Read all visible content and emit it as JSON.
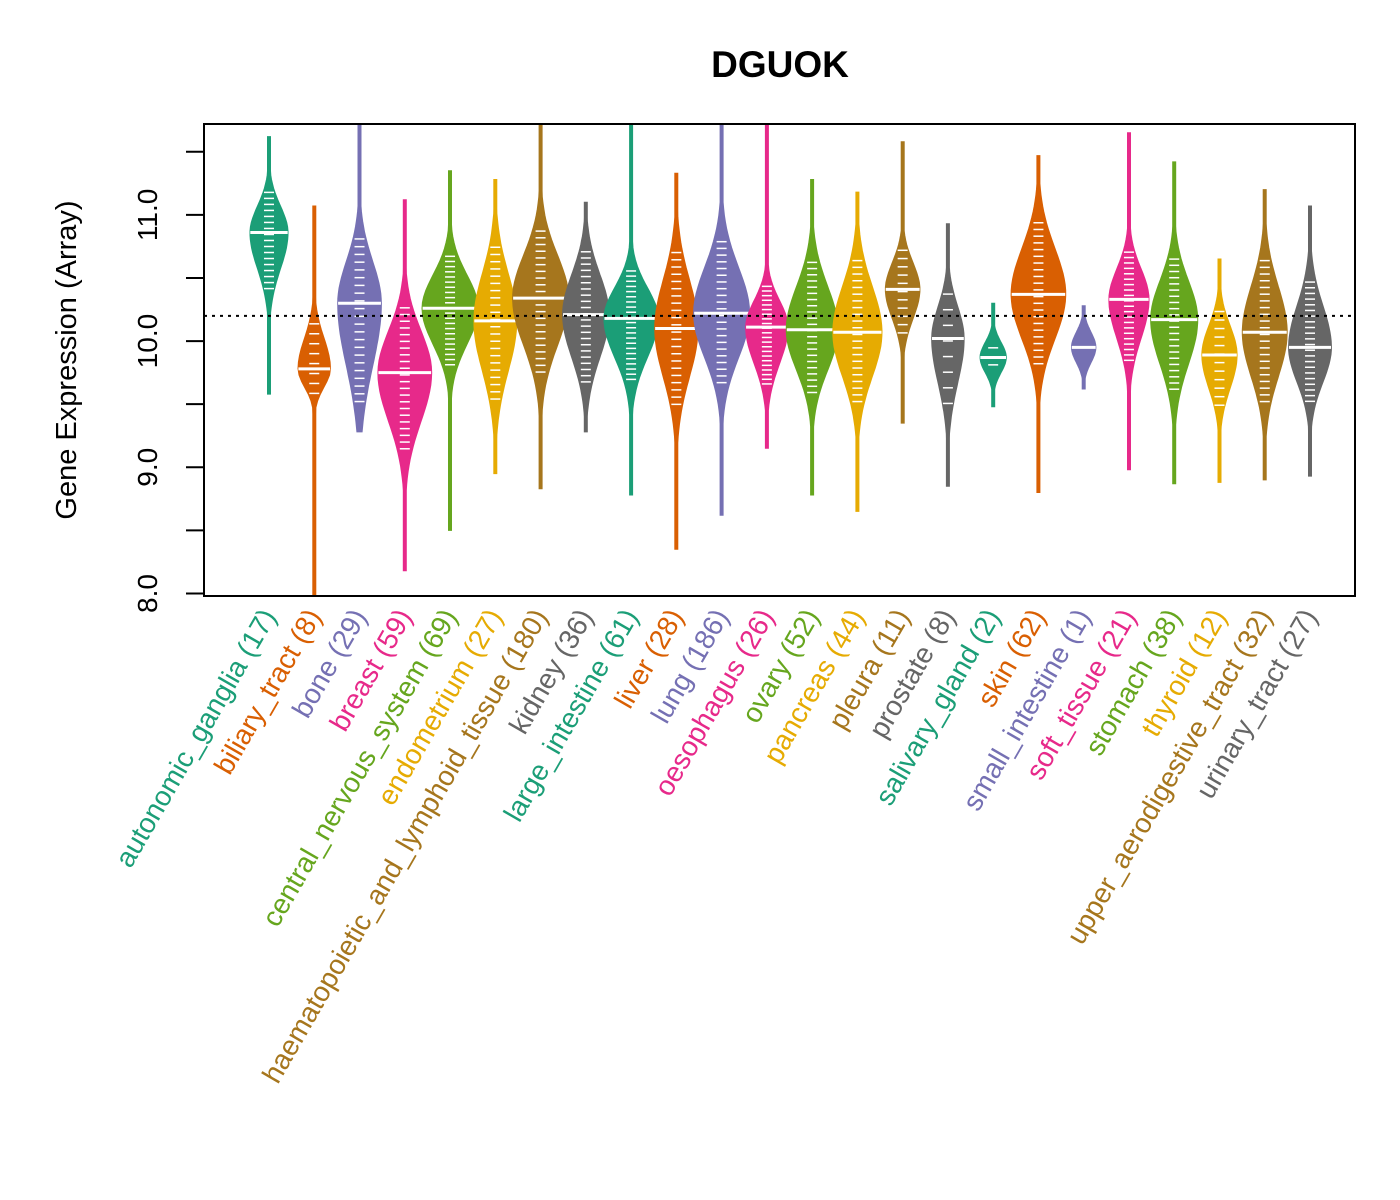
{
  "chart_data": {
    "type": "violin",
    "title": "DGUOK",
    "xlabel": "",
    "ylabel": "Gene Expression (Array)",
    "ylim": [
      7.98,
      11.72
    ],
    "yticks": [
      8.0,
      8.5,
      9.0,
      9.5,
      10.0,
      10.5,
      11.0,
      11.5
    ],
    "ytick_labels": [
      "8.0",
      "",
      "9.0",
      "",
      "10.0",
      "",
      "11.0",
      ""
    ],
    "reference_line": 10.2,
    "reference_line_style": "dotted",
    "grid": false,
    "categories": [
      {
        "name": "autonomic_ganglia",
        "n": 17,
        "color": "#1B9E77",
        "median": 10.86,
        "min": 9.58,
        "max": 11.62,
        "q1": 10.6,
        "q3": 11.05
      },
      {
        "name": "biliary_tract",
        "n": 8,
        "color": "#D95F02",
        "median": 9.78,
        "min": 7.98,
        "max": 11.07,
        "q1": 9.65,
        "q3": 10.0
      },
      {
        "name": "bone",
        "n": 29,
        "color": "#7570B3",
        "median": 10.3,
        "min": 9.28,
        "max": 11.72,
        "q1": 9.85,
        "q3": 10.6
      },
      {
        "name": "breast",
        "n": 59,
        "color": "#E7298A",
        "median": 9.75,
        "min": 8.18,
        "max": 11.12,
        "q1": 9.4,
        "q3": 10.05
      },
      {
        "name": "central_nervous_system",
        "n": 69,
        "color": "#66A61E",
        "median": 10.26,
        "min": 8.5,
        "max": 11.35,
        "q1": 10.0,
        "q3": 10.5
      },
      {
        "name": "endometrium",
        "n": 27,
        "color": "#E6AB02",
        "median": 10.16,
        "min": 8.95,
        "max": 11.28,
        "q1": 9.8,
        "q3": 10.5
      },
      {
        "name": "haematopoietic_and_lymphoid_tissue",
        "n": 180,
        "color": "#A6761D",
        "median": 10.34,
        "min": 8.83,
        "max": 11.72,
        "q1": 10.0,
        "q3": 10.65
      },
      {
        "name": "kidney",
        "n": 36,
        "color": "#666666",
        "median": 10.21,
        "min": 9.28,
        "max": 11.1,
        "q1": 9.9,
        "q3": 10.5
      },
      {
        "name": "large_intestine",
        "n": 61,
        "color": "#1B9E77",
        "median": 10.18,
        "min": 8.78,
        "max": 11.72,
        "q1": 9.9,
        "q3": 10.4
      },
      {
        "name": "liver",
        "n": 28,
        "color": "#D95F02",
        "median": 10.1,
        "min": 8.35,
        "max": 11.33,
        "q1": 9.75,
        "q3": 10.45
      },
      {
        "name": "lung",
        "n": 186,
        "color": "#7570B3",
        "median": 10.22,
        "min": 8.62,
        "max": 11.72,
        "q1": 9.9,
        "q3": 10.55
      },
      {
        "name": "oesophagus",
        "n": 26,
        "color": "#E7298A",
        "median": 10.11,
        "min": 9.15,
        "max": 11.72,
        "q1": 9.85,
        "q3": 10.3
      },
      {
        "name": "ovary",
        "n": 52,
        "color": "#66A61E",
        "median": 10.09,
        "min": 8.78,
        "max": 11.28,
        "q1": 9.8,
        "q3": 10.4
      },
      {
        "name": "pancreas",
        "n": 44,
        "color": "#E6AB02",
        "median": 10.07,
        "min": 8.65,
        "max": 11.18,
        "q1": 9.75,
        "q3": 10.4
      },
      {
        "name": "pleura",
        "n": 11,
        "color": "#A6761D",
        "median": 10.41,
        "min": 9.35,
        "max": 11.58,
        "q1": 10.2,
        "q3": 10.6
      },
      {
        "name": "prostate",
        "n": 8,
        "color": "#666666",
        "median": 10.02,
        "min": 8.85,
        "max": 10.93,
        "q1": 9.7,
        "q3": 10.25
      },
      {
        "name": "salivary_gland",
        "n": 2,
        "color": "#1B9E77",
        "median": 9.87,
        "min": 9.48,
        "max": 10.3,
        "q1": 9.8,
        "q3": 9.95
      },
      {
        "name": "skin",
        "n": 62,
        "color": "#D95F02",
        "median": 10.37,
        "min": 8.8,
        "max": 11.47,
        "q1": 10.05,
        "q3": 10.7
      },
      {
        "name": "small_intestine",
        "n": 1,
        "color": "#7570B3",
        "median": 9.95,
        "min": 9.62,
        "max": 10.28,
        "q1": 9.9,
        "q3": 10.0
      },
      {
        "name": "soft_tissue",
        "n": 21,
        "color": "#E7298A",
        "median": 10.33,
        "min": 8.98,
        "max": 11.65,
        "q1": 10.05,
        "q3": 10.55
      },
      {
        "name": "stomach",
        "n": 38,
        "color": "#66A61E",
        "median": 10.17,
        "min": 8.87,
        "max": 11.42,
        "q1": 9.85,
        "q3": 10.45
      },
      {
        "name": "thyroid",
        "n": 12,
        "color": "#E6AB02",
        "median": 9.89,
        "min": 8.88,
        "max": 10.65,
        "q1": 9.65,
        "q3": 10.1
      },
      {
        "name": "upper_aerodigestive_tract",
        "n": 32,
        "color": "#A6761D",
        "median": 10.07,
        "min": 8.9,
        "max": 11.2,
        "q1": 9.75,
        "q3": 10.4
      },
      {
        "name": "urinary_tract",
        "n": 27,
        "color": "#666666",
        "median": 9.95,
        "min": 8.93,
        "max": 11.07,
        "q1": 9.7,
        "q3": 10.25
      }
    ]
  }
}
